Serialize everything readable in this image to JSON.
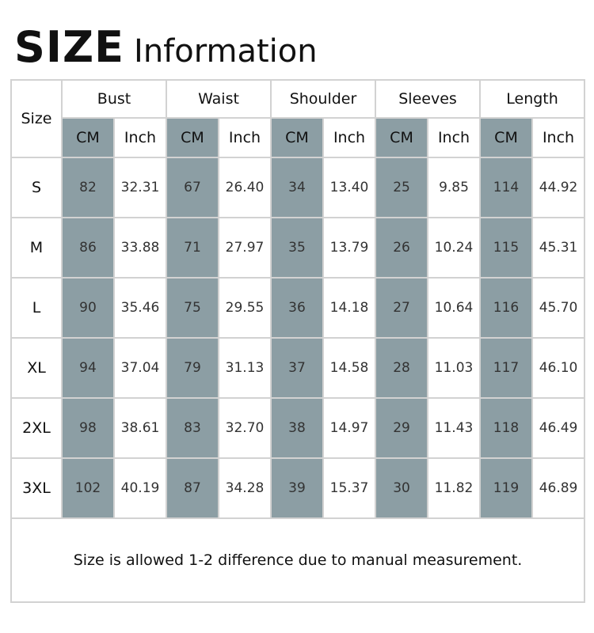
{
  "title": {
    "main": "SIZE",
    "sub": "Information"
  },
  "table": {
    "corner": "Size",
    "groups": [
      "Bust",
      "Waist",
      "Shoulder",
      "Sleeves",
      "Length"
    ],
    "units": [
      "CM",
      "Inch"
    ],
    "rows": [
      [
        "S",
        "82",
        "32.31",
        "67",
        "26.40",
        "34",
        "13.40",
        "25",
        "9.85",
        "114",
        "44.92"
      ],
      [
        "M",
        "86",
        "33.88",
        "71",
        "27.97",
        "35",
        "13.79",
        "26",
        "10.24",
        "115",
        "45.31"
      ],
      [
        "L",
        "90",
        "35.46",
        "75",
        "29.55",
        "36",
        "14.18",
        "27",
        "10.64",
        "116",
        "45.70"
      ],
      [
        "XL",
        "94",
        "37.04",
        "79",
        "31.13",
        "37",
        "14.58",
        "28",
        "11.03",
        "117",
        "46.10"
      ],
      [
        "2XL",
        "98",
        "38.61",
        "83",
        "32.70",
        "38",
        "14.97",
        "29",
        "11.43",
        "118",
        "46.49"
      ],
      [
        "3XL",
        "102",
        "40.19",
        "87",
        "34.28",
        "39",
        "15.37",
        "30",
        "11.82",
        "119",
        "46.89"
      ]
    ],
    "note": "Size is allowed 1-2 difference due to manual measurement."
  }
}
